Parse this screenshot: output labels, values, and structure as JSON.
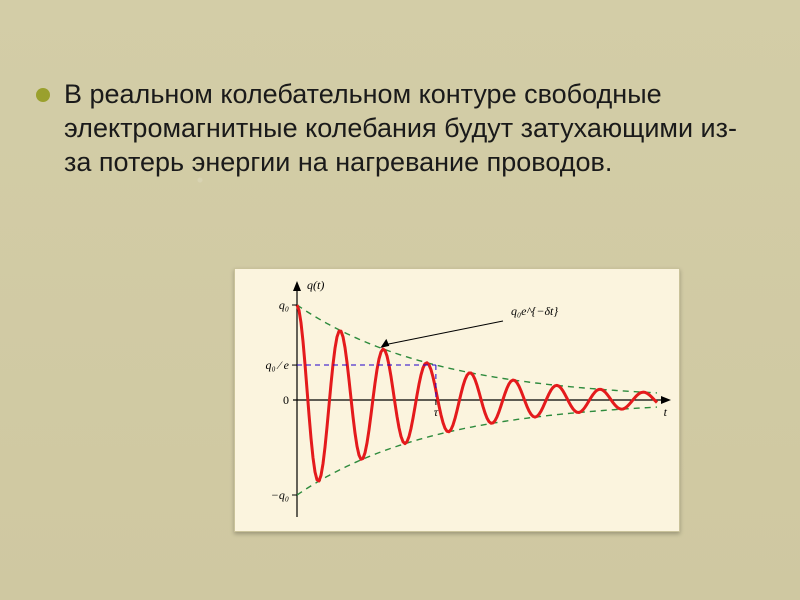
{
  "bullet": {
    "text": "В реальном колебательном контуре свободные электромагнитные колебания будут затухающими из-за потерь энергии на нагревание проводов."
  },
  "chart": {
    "type": "line",
    "background_color": "#fbf4de",
    "axis_color": "#000000",
    "curve_color": "#e41a1c",
    "envelope_color": "#2e8b3d",
    "marker_line_color": "#2000cc",
    "label_fontsize": 12,
    "labels": {
      "y_axis": "q(t)",
      "x_axis": "t",
      "q0_top": "q₀",
      "q0_bottom": "−q₀",
      "q0_over_e": "q₀ ⁄ e",
      "zero": "0",
      "tau": "τ",
      "envelope_formula": "q₀e^{−δt}"
    },
    "envelope_dash": "6 5",
    "marker_dash": "5 4",
    "curve_width": 3,
    "envelope_width": 1.4,
    "axis_width": 1.2,
    "amplitude": 95,
    "decay": 0.0072,
    "angular_freq": 0.145,
    "x_range": [
      0,
      360
    ]
  }
}
